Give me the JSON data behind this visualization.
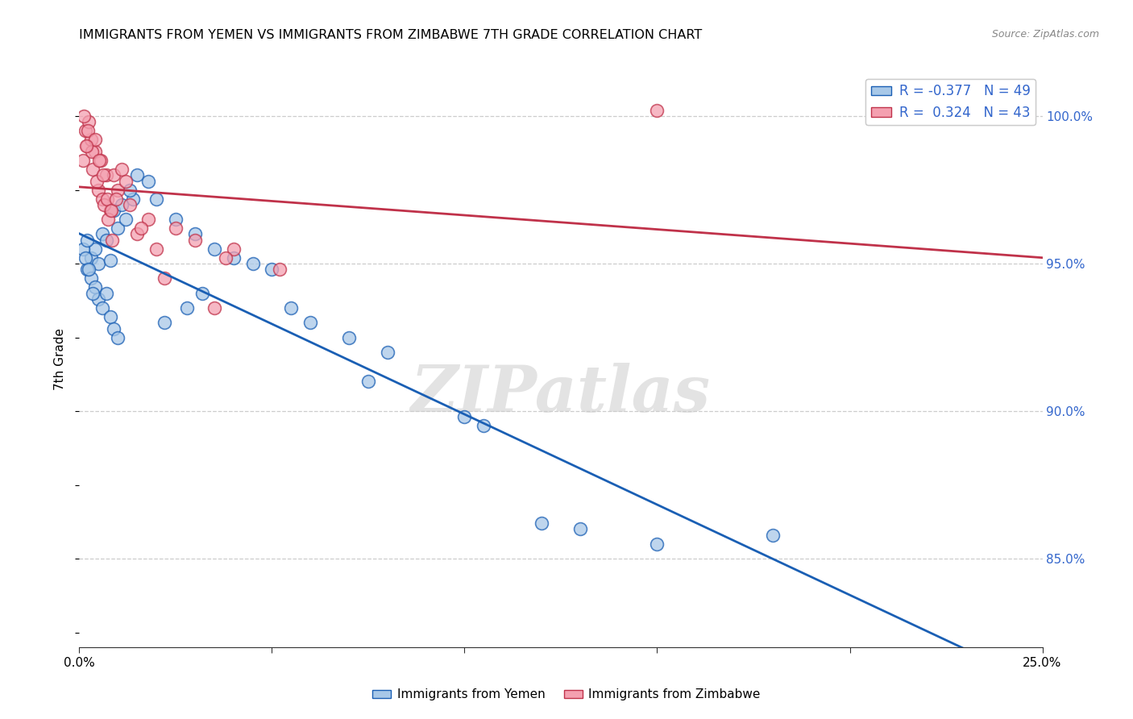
{
  "title": "IMMIGRANTS FROM YEMEN VS IMMIGRANTS FROM ZIMBABWE 7TH GRADE CORRELATION CHART",
  "source": "Source: ZipAtlas.com",
  "ylabel": "7th Grade",
  "yticks": [
    85.0,
    90.0,
    95.0,
    100.0
  ],
  "xlim": [
    0.0,
    25.0
  ],
  "ylim": [
    82.0,
    101.5
  ],
  "legend_r_yemen": "-0.377",
  "legend_n_yemen": 49,
  "legend_r_zimbabwe": "0.324",
  "legend_n_zimbabwe": 43,
  "watermark": "ZIPatlas",
  "yemen_color": "#a8c8e8",
  "zimbabwe_color": "#f4a0b0",
  "yemen_line_color": "#1a5fb4",
  "zimbabwe_line_color": "#c0324a",
  "yemen_points_x": [
    0.3,
    0.5,
    0.8,
    1.0,
    1.2,
    1.4,
    0.2,
    0.4,
    0.6,
    0.7,
    0.9,
    1.1,
    1.3,
    1.5,
    1.8,
    2.0,
    2.5,
    3.0,
    3.5,
    4.0,
    4.5,
    5.0,
    5.5,
    6.0,
    7.0,
    8.0,
    0.1,
    0.2,
    0.3,
    0.4,
    0.5,
    0.6,
    0.7,
    0.8,
    0.9,
    1.0,
    0.15,
    0.25,
    0.35,
    2.2,
    2.8,
    3.2,
    10.0,
    12.0,
    13.0,
    15.0,
    18.0,
    10.5,
    7.5
  ],
  "yemen_points_y": [
    95.2,
    95.0,
    95.1,
    96.2,
    96.5,
    97.2,
    94.8,
    95.5,
    96.0,
    95.8,
    96.8,
    97.0,
    97.5,
    98.0,
    97.8,
    97.2,
    96.5,
    96.0,
    95.5,
    95.2,
    95.0,
    94.8,
    93.5,
    93.0,
    92.5,
    92.0,
    95.5,
    95.8,
    94.5,
    94.2,
    93.8,
    93.5,
    94.0,
    93.2,
    92.8,
    92.5,
    95.2,
    94.8,
    94.0,
    93.0,
    93.5,
    94.0,
    89.8,
    86.2,
    86.0,
    85.5,
    85.8,
    89.5,
    91.0
  ],
  "zimbabwe_points_x": [
    0.1,
    0.2,
    0.3,
    0.4,
    0.5,
    0.6,
    0.7,
    0.8,
    0.15,
    0.25,
    0.35,
    0.45,
    0.55,
    0.65,
    0.75,
    0.9,
    1.0,
    1.1,
    1.2,
    1.5,
    1.8,
    2.0,
    2.5,
    3.0,
    3.5,
    0.12,
    0.22,
    0.32,
    0.42,
    0.52,
    0.62,
    0.72,
    0.82,
    4.0,
    15.0,
    1.3,
    0.85,
    2.2,
    1.6,
    0.95,
    5.2,
    3.8,
    0.18
  ],
  "zimbabwe_points_y": [
    98.5,
    99.0,
    99.2,
    98.8,
    97.5,
    97.2,
    98.0,
    96.8,
    99.5,
    99.8,
    98.2,
    97.8,
    98.5,
    97.0,
    96.5,
    98.0,
    97.5,
    98.2,
    97.8,
    96.0,
    96.5,
    95.5,
    96.2,
    95.8,
    93.5,
    100.0,
    99.5,
    98.8,
    99.2,
    98.5,
    98.0,
    97.2,
    96.8,
    95.5,
    100.2,
    97.0,
    95.8,
    94.5,
    96.2,
    97.2,
    94.8,
    95.2,
    99.0
  ]
}
